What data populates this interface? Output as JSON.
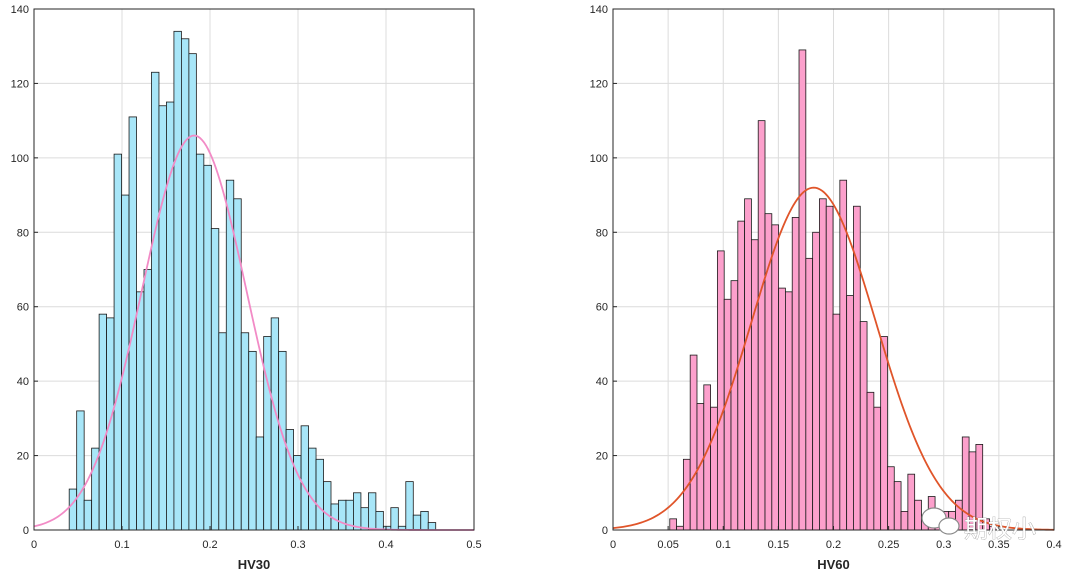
{
  "chart_data": [
    {
      "type": "histogram",
      "title": "",
      "xlabel": "HV30",
      "ylabel": "",
      "xlim": [
        0,
        0.5
      ],
      "ylim": [
        0,
        140
      ],
      "xticks": [
        "0",
        "0.1",
        "0.2",
        "0.3",
        "0.4",
        "0.5"
      ],
      "yticks": [
        "0",
        "20",
        "40",
        "60",
        "80",
        "100",
        "120",
        "140"
      ],
      "grid": true,
      "bar_color": "#a8e6f8",
      "fit_color": "#f28bc6",
      "bins": {
        "start": 0.04,
        "width": 0.0085
      },
      "values": [
        11,
        32,
        8,
        22,
        58,
        57,
        101,
        90,
        111,
        64,
        70,
        123,
        114,
        115,
        134,
        132,
        128,
        101,
        98,
        81,
        53,
        94,
        89,
        53,
        48,
        25,
        52,
        57,
        48,
        27,
        20,
        28,
        22,
        19,
        13,
        7,
        8,
        8,
        10,
        6,
        10,
        5,
        1,
        6,
        1,
        13,
        4,
        5,
        2
      ],
      "fit": {
        "type": "normal",
        "mean": 0.182,
        "sd": 0.0595,
        "peak": 106
      }
    },
    {
      "type": "histogram",
      "title": "",
      "xlabel": "HV60",
      "ylabel": "",
      "xlim": [
        0,
        0.4
      ],
      "ylim": [
        0,
        140
      ],
      "xticks": [
        "0",
        "0.05",
        "0.1",
        "0.15",
        "0.2",
        "0.25",
        "0.3",
        "0.35",
        "0.4"
      ],
      "yticks": [
        "0",
        "20",
        "40",
        "60",
        "80",
        "100",
        "120",
        "140"
      ],
      "grid": true,
      "bar_color": "#fca0cc",
      "fit_color": "#e0552a",
      "bins": {
        "start": 0.0515,
        "width": 0.00617
      },
      "values": [
        3,
        1,
        19,
        47,
        34,
        39,
        33,
        75,
        62,
        67,
        83,
        89,
        78,
        110,
        85,
        82,
        65,
        64,
        84,
        129,
        73,
        80,
        89,
        87,
        58,
        94,
        63,
        87,
        56,
        37,
        33,
        52,
        17,
        13,
        5,
        15,
        8,
        4,
        9,
        1,
        5,
        5,
        8,
        25,
        21,
        23,
        3,
        1
      ],
      "fit": {
        "type": "normal",
        "mean": 0.182,
        "sd": 0.0565,
        "peak": 92
      }
    }
  ],
  "watermark": {
    "text": "期权小"
  }
}
